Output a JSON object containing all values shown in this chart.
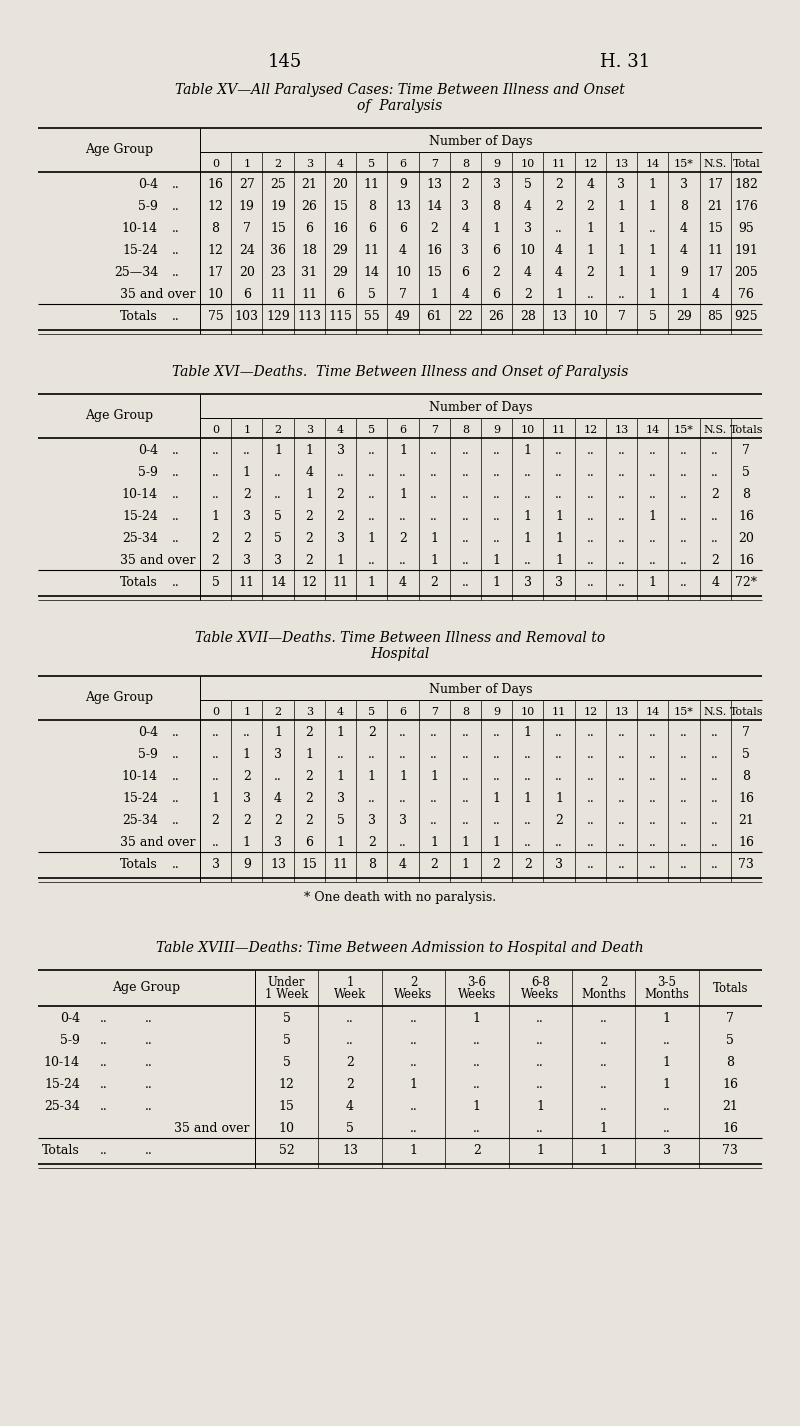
{
  "page_num": "145",
  "page_ref": "H. 31",
  "bg_color": "#e8e4dc",
  "table15": {
    "title_line1": "Table XV—All Paralysed Cases: Time Between Illness and Onset",
    "title_line2": "of  Paralysis",
    "col_headers": [
      "0",
      "1",
      "2",
      "3",
      "4",
      "5",
      "6",
      "7",
      "8",
      "9",
      "10",
      "11",
      "12",
      "13",
      "14",
      "15*",
      "N.S.",
      "Total"
    ],
    "row_labels": [
      "0-4",
      "5-9",
      "10-14",
      "15-24",
      "25—34",
      "35 and over",
      "Totals"
    ],
    "row_dots": [
      true,
      true,
      true,
      true,
      true,
      false,
      true
    ],
    "data_clean": [
      [
        "16",
        "27",
        "25",
        "21",
        "20",
        "11",
        "9",
        "13",
        "2",
        "3",
        "5",
        "2",
        "4",
        "3",
        "1",
        "3",
        "17",
        "182"
      ],
      [
        "12",
        "19",
        "19",
        "26",
        "15",
        "8",
        "13",
        "14",
        "3",
        "8",
        "4",
        "2",
        "2",
        "1",
        "1",
        "8",
        "21",
        "176"
      ],
      [
        "8",
        "7",
        "15",
        "6",
        "16",
        "6",
        "6",
        "2",
        "4",
        "1",
        "3",
        "..",
        "1",
        "1",
        "..",
        "4",
        "15",
        "95"
      ],
      [
        "12",
        "24",
        "36",
        "18",
        "29",
        "11",
        "4",
        "16",
        "3",
        "6",
        "10",
        "4",
        "1",
        "1",
        "1",
        "4",
        "11",
        "191"
      ],
      [
        "17",
        "20",
        "23",
        "31",
        "29",
        "14",
        "10",
        "15",
        "6",
        "2",
        "4",
        "4",
        "2",
        "1",
        "1",
        "9",
        "17",
        "205"
      ],
      [
        "10",
        "6",
        "11",
        "11",
        "6",
        "5",
        "7",
        "1",
        "4",
        "6",
        "2",
        "1",
        "..",
        "..",
        "1",
        "1",
        "4",
        "76"
      ],
      [
        "75",
        "103",
        "129",
        "113",
        "115",
        "55",
        "49",
        "61",
        "22",
        "26",
        "28",
        "13",
        "10",
        "7",
        "5",
        "29",
        "85",
        "925"
      ]
    ]
  },
  "table16": {
    "title_line1": "Table XVI—Deaths.  Time Between Illness and Onset of Paralysis",
    "col_headers": [
      "0",
      "1",
      "2",
      "3",
      "4",
      "5",
      "6",
      "7",
      "8",
      "9",
      "10",
      "11",
      "12",
      "13",
      "14",
      "15*",
      "N.S.",
      "Totals"
    ],
    "row_labels": [
      "0-4",
      "5-9",
      "10-14",
      "15-24",
      "25-34",
      "35 and over",
      "Totals"
    ],
    "row_dots": [
      true,
      true,
      true,
      true,
      true,
      false,
      true
    ],
    "data_clean": [
      [
        "..",
        "..",
        "1",
        "1",
        "3",
        "..",
        "1",
        "..",
        "..",
        "..",
        "1",
        "..",
        "..",
        "..",
        "..",
        "..",
        "..",
        "7"
      ],
      [
        "..",
        "1",
        "..",
        "4",
        "..",
        "..",
        "..",
        "..",
        "..",
        "..",
        "..",
        "..",
        "..",
        "..",
        "..",
        "..",
        "..",
        "5"
      ],
      [
        "..",
        "2",
        "..",
        "1",
        "2",
        "..",
        "1",
        "..",
        "..",
        "..",
        "..",
        "..",
        "..",
        "..",
        "..",
        "..",
        "2",
        "8"
      ],
      [
        "1",
        "3",
        "5",
        "2",
        "2",
        "..",
        "..",
        "..",
        "..",
        "..",
        "1",
        "1",
        "..",
        "..",
        "1",
        "..",
        "..",
        "16"
      ],
      [
        "2",
        "2",
        "5",
        "2",
        "3",
        "1",
        "2",
        "1",
        "..",
        "..",
        "1",
        "1",
        "..",
        "..",
        "..",
        "..",
        "..",
        "20"
      ],
      [
        "2",
        "3",
        "3",
        "2",
        "1",
        "..",
        "..",
        "1",
        "..",
        "1",
        "..",
        "1",
        "..",
        "..",
        "..",
        "..",
        "2",
        "16"
      ],
      [
        "5",
        "11",
        "14",
        "12",
        "11",
        "1",
        "4",
        "2",
        "..",
        "1",
        "3",
        "3",
        "..",
        "..",
        "1",
        "..",
        "4",
        "72*"
      ]
    ]
  },
  "table17": {
    "title_line1": "Table XVII—Deaths. Time Between Illness and Removal to",
    "title_line2": "Hospital",
    "col_headers": [
      "0",
      "1",
      "2",
      "3",
      "4",
      "5",
      "6",
      "7",
      "8",
      "9",
      "10",
      "11",
      "12",
      "13",
      "14",
      "15*",
      "N.S.",
      "Totals"
    ],
    "row_labels": [
      "0-4",
      "5-9",
      "10-14",
      "15-24",
      "25-34",
      "35 and over",
      "Totals"
    ],
    "row_dots": [
      true,
      true,
      true,
      true,
      true,
      false,
      true
    ],
    "data_clean": [
      [
        "..",
        "..",
        "1",
        "2",
        "1",
        "2",
        "..",
        "..",
        "..",
        "..",
        "1",
        "..",
        "..",
        "..",
        "..",
        "..",
        "..",
        "7"
      ],
      [
        "..",
        "1",
        "3",
        "1",
        "..",
        "..",
        "..",
        "..",
        "..",
        "..",
        "..",
        "..",
        "..",
        "..",
        "..",
        "..",
        "..",
        "5"
      ],
      [
        "..",
        "2",
        "..",
        "2",
        "1",
        "1",
        "1",
        "1",
        "..",
        "..",
        "..",
        "..",
        "..",
        "..",
        "..",
        "..",
        "..",
        "8"
      ],
      [
        "1",
        "3",
        "4",
        "2",
        "3",
        "..",
        "..",
        "..",
        "..",
        "1",
        "1",
        "1",
        "..",
        "..",
        "..",
        "..",
        "..",
        "16"
      ],
      [
        "2",
        "2",
        "2",
        "2",
        "5",
        "3",
        "3",
        "..",
        "..",
        "..",
        "..",
        "2",
        "..",
        "..",
        "..",
        "..",
        "..",
        "21"
      ],
      [
        "..",
        "1",
        "3",
        "6",
        "1",
        "2",
        "..",
        "1",
        "1",
        "1",
        "..",
        "..",
        "..",
        "..",
        "..",
        "..",
        "..",
        "16"
      ],
      [
        "3",
        "9",
        "13",
        "15",
        "11",
        "8",
        "4",
        "2",
        "1",
        "2",
        "2",
        "3",
        "..",
        "..",
        "..",
        "..",
        "..",
        "73"
      ]
    ],
    "footnote": "* One death with no paralysis."
  },
  "table18": {
    "title_line1": "Table XVIII—Deaths: Time Between Admission to Hospital and Death",
    "col_headers": [
      "Under\n1 Week",
      "1\nWeek",
      "2\nWeeks",
      "3-6\nWeeks",
      "6-8\nWeeks",
      "2\nMonths",
      "3-5\nMonths",
      "Totals"
    ],
    "row_labels": [
      "0-4",
      "5-9",
      "10-14",
      "15-24",
      "25-34",
      "35 and over",
      "Totals"
    ],
    "row_dots2": [
      true,
      true,
      true,
      true,
      true,
      false,
      true
    ],
    "data_clean": [
      [
        "5",
        "..",
        "..",
        "1",
        "..",
        "..",
        "1",
        "7"
      ],
      [
        "5",
        "..",
        "..",
        "..",
        "..",
        "..",
        "..",
        "5"
      ],
      [
        "5",
        "2",
        "..",
        "..",
        "..",
        "..",
        "1",
        "8"
      ],
      [
        "12",
        "2",
        "1",
        "..",
        "..",
        "..",
        "1",
        "16"
      ],
      [
        "15",
        "4",
        "..",
        "1",
        "1",
        "..",
        "..",
        "21"
      ],
      [
        "10",
        "5",
        "..",
        "..",
        "..",
        "1",
        "..",
        "16"
      ],
      [
        "52",
        "13",
        "1",
        "2",
        "1",
        "1",
        "3",
        "73"
      ]
    ]
  }
}
